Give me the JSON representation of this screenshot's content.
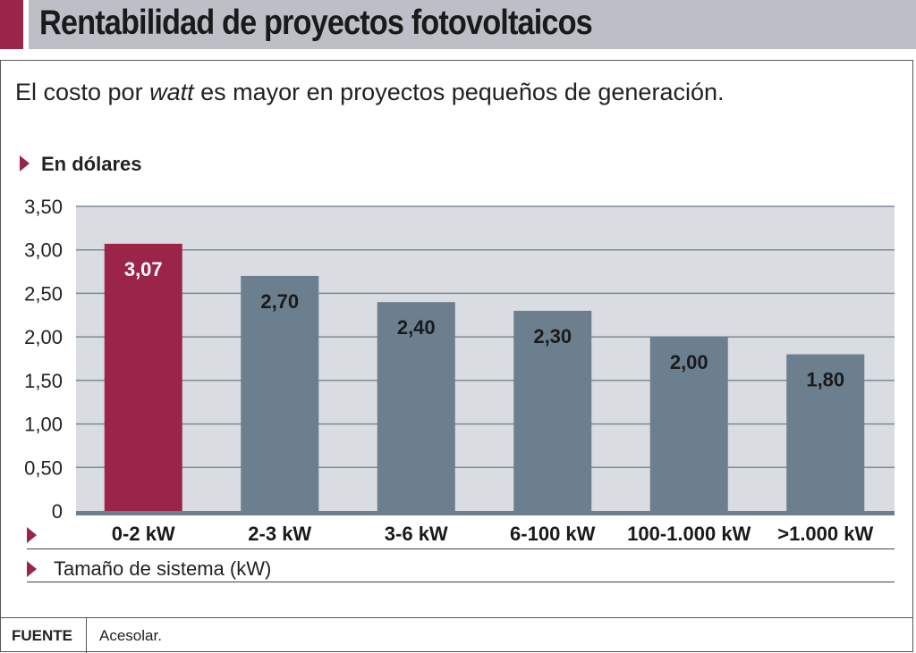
{
  "title": "Rentabilidad de proyectos fotovoltaicos",
  "subtitle_pre": "El costo por ",
  "subtitle_em": "watt",
  "subtitle_post": " es mayor en proyectos pequeños de generación.",
  "footer": {
    "label": "FUENTE",
    "source": "Acesolar."
  },
  "colors": {
    "accent": "#9b2449",
    "bar": "#6b7f8f",
    "plot_bg": "#d9dce0"
  },
  "chart_data": {
    "type": "bar",
    "title": "Rentabilidad de proyectos fotovoltaicos",
    "ylabel": "En dólares",
    "xlabel": "Tamaño de sistema (kW)",
    "categories": [
      "0-2 kW",
      "2-3 kW",
      "3-6 kW",
      "6-100 kW",
      "100-1.000 kW",
      ">1.000 kW"
    ],
    "values": [
      3.07,
      2.7,
      2.4,
      2.3,
      2.0,
      1.8
    ],
    "labels": [
      "3,07",
      "2,70",
      "2,40",
      "2,30",
      "2,00",
      "1,80"
    ],
    "highlight": [
      true,
      false,
      false,
      false,
      false,
      false
    ],
    "ylim": [
      0,
      3.5
    ],
    "yticks": [
      0,
      0.5,
      1,
      1.5,
      2,
      2.5,
      3,
      3.5
    ],
    "ytick_labels": [
      "0",
      "0,50",
      "1,00",
      "1,50",
      "2,00",
      "2,50",
      "3,00",
      "3,50"
    ],
    "grid": true
  }
}
